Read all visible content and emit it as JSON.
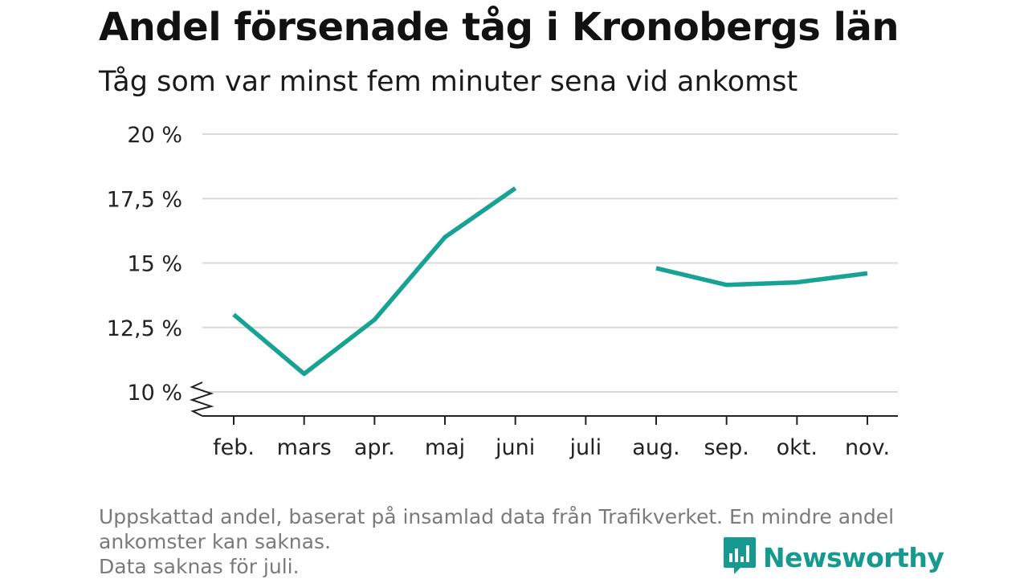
{
  "header": {
    "title": "Andel försenade tåg i Kronobergs län",
    "subtitle": "Tåg som var minst fem minuter sena vid ankomst"
  },
  "footer": {
    "note_line1": "Uppskattad andel, baserat på insamlad data från Trafikverket. En mindre andel",
    "note_line2": "ankomster kan saknas.",
    "note_line3": "Data saknas för juli.",
    "brand": "Newsworthy"
  },
  "chart_data": {
    "type": "line",
    "title": "Andel försenade tåg i Kronobergs län",
    "subtitle": "Tåg som var minst fem minuter sena vid ankomst",
    "categories": [
      "feb.",
      "mars",
      "apr.",
      "maj",
      "juni",
      "juli",
      "aug.",
      "sep.",
      "okt.",
      "nov."
    ],
    "series": [
      {
        "values": [
          13.0,
          10.7,
          12.8,
          16.0,
          17.9,
          null,
          14.8,
          14.15,
          14.25,
          14.6
        ],
        "color": "#16a394"
      }
    ],
    "yticks": [
      10,
      12.5,
      15,
      17.5,
      20
    ],
    "ytick_labels": [
      "10 %",
      "12,5 %",
      "15 %",
      "17,5 %",
      "20 %"
    ],
    "ylim": [
      10,
      20
    ],
    "y_axis_break": true,
    "grid": true,
    "xlabel": "",
    "ylabel": ""
  },
  "colors": {
    "line": "#16a394",
    "grid": "#d9d9d9",
    "axis": "#222222",
    "brand": "#16998e",
    "footnote": "#7a7a7a"
  }
}
